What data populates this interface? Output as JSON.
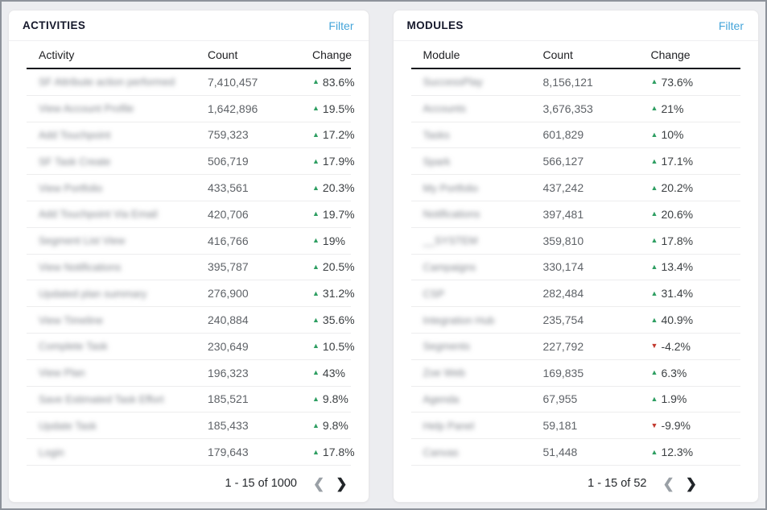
{
  "colors": {
    "accent_blue": "#45a5da",
    "positive_green": "#2e9e62",
    "negative_red": "#c23a2f",
    "page_background": "#ecedf0"
  },
  "panels": [
    {
      "title": "ACTIVITIES",
      "filter_label": "Filter",
      "columns": {
        "name": "Activity",
        "count": "Count",
        "change": "Change"
      },
      "rows": [
        {
          "name": "SF Attribute action performed",
          "count": "7,410,457",
          "change": "83.6%",
          "direction": "up"
        },
        {
          "name": "View Account Profile",
          "count": "1,642,896",
          "change": "19.5%",
          "direction": "up"
        },
        {
          "name": "Add Touchpoint",
          "count": "759,323",
          "change": "17.2%",
          "direction": "up"
        },
        {
          "name": "SF Task Create",
          "count": "506,719",
          "change": "17.9%",
          "direction": "up"
        },
        {
          "name": "View Portfolio",
          "count": "433,561",
          "change": "20.3%",
          "direction": "up"
        },
        {
          "name": "Add Touchpoint Via Email",
          "count": "420,706",
          "change": "19.7%",
          "direction": "up"
        },
        {
          "name": "Segment List View",
          "count": "416,766",
          "change": "19%",
          "direction": "up"
        },
        {
          "name": "View Notifications",
          "count": "395,787",
          "change": "20.5%",
          "direction": "up"
        },
        {
          "name": "Updated plan summary",
          "count": "276,900",
          "change": "31.2%",
          "direction": "up"
        },
        {
          "name": "View Timeline",
          "count": "240,884",
          "change": "35.6%",
          "direction": "up"
        },
        {
          "name": "Complete Task",
          "count": "230,649",
          "change": "10.5%",
          "direction": "up"
        },
        {
          "name": "View Plan",
          "count": "196,323",
          "change": "43%",
          "direction": "up"
        },
        {
          "name": "Save Estimated Task Effort",
          "count": "185,521",
          "change": "9.8%",
          "direction": "up"
        },
        {
          "name": "Update Task",
          "count": "185,433",
          "change": "9.8%",
          "direction": "up"
        },
        {
          "name": "Login",
          "count": "179,643",
          "change": "17.8%",
          "direction": "up"
        }
      ],
      "pagination": {
        "range": "1 - 15 of 1000",
        "prev": "❮",
        "next": "❯"
      }
    },
    {
      "title": "MODULES",
      "filter_label": "Filter",
      "columns": {
        "name": "Module",
        "count": "Count",
        "change": "Change"
      },
      "rows": [
        {
          "name": "SuccessPlay",
          "count": "8,156,121",
          "change": "73.6%",
          "direction": "up"
        },
        {
          "name": "Accounts",
          "count": "3,676,353",
          "change": "21%",
          "direction": "up"
        },
        {
          "name": "Tasks",
          "count": "601,829",
          "change": "10%",
          "direction": "up"
        },
        {
          "name": "Spark",
          "count": "566,127",
          "change": "17.1%",
          "direction": "up"
        },
        {
          "name": "My Portfolio",
          "count": "437,242",
          "change": "20.2%",
          "direction": "up"
        },
        {
          "name": "Notifications",
          "count": "397,481",
          "change": "20.6%",
          "direction": "up"
        },
        {
          "name": "__SYSTEM",
          "count": "359,810",
          "change": "17.8%",
          "direction": "up"
        },
        {
          "name": "Campaigns",
          "count": "330,174",
          "change": "13.4%",
          "direction": "up"
        },
        {
          "name": "CSP",
          "count": "282,484",
          "change": "31.4%",
          "direction": "up"
        },
        {
          "name": "Integration Hub",
          "count": "235,754",
          "change": "40.9%",
          "direction": "up"
        },
        {
          "name": "Segments",
          "count": "227,792",
          "change": "-4.2%",
          "direction": "down"
        },
        {
          "name": "Zoe Web",
          "count": "169,835",
          "change": "6.3%",
          "direction": "up"
        },
        {
          "name": "Agenda",
          "count": "67,955",
          "change": "1.9%",
          "direction": "up"
        },
        {
          "name": "Help Panel",
          "count": "59,181",
          "change": "-9.9%",
          "direction": "down"
        },
        {
          "name": "Canvas",
          "count": "51,448",
          "change": "12.3%",
          "direction": "up"
        }
      ],
      "pagination": {
        "range": "1 - 15 of 52",
        "prev": "❮",
        "next": "❯"
      }
    }
  ]
}
